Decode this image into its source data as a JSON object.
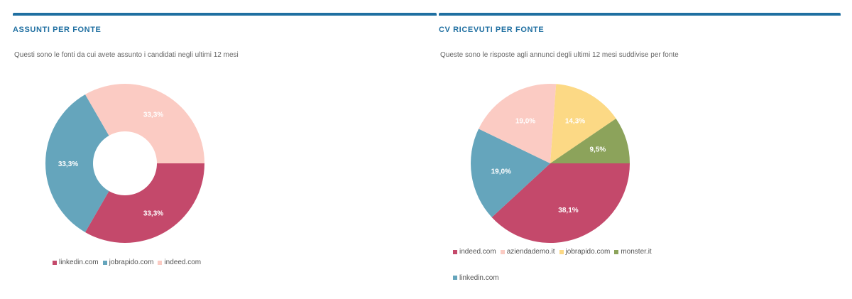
{
  "colors": {
    "accent": "#1f6fa1",
    "indeed": "#fbcbc3",
    "linkedin": "#c4496b",
    "jobrapido": "#65a5bc",
    "aziendademo": "#fbcbc3",
    "jobrapido_yellow": "#fcd985",
    "monster": "#8ca35b"
  },
  "left_panel": {
    "title": "ASSUNTI PER FONTE",
    "subtitle": "Questi sono le fonti da cui avete assunto i candidati negli ultimi 12 mesi",
    "legend": [
      {
        "label": "linkedin.com",
        "color": "#c4496b"
      },
      {
        "label": "jobrapido.com",
        "color": "#65a5bc"
      },
      {
        "label": "indeed.com",
        "color": "#fbcbc3"
      }
    ]
  },
  "right_panel": {
    "title": "CV RICEVUTI PER FONTE",
    "subtitle": "Queste sono le risposte agli annunci degli ultimi 12 mesi suddivise per fonte",
    "legend": [
      {
        "label": "indeed.com",
        "color": "#c4496b"
      },
      {
        "label": "aziendademo.it",
        "color": "#fbcbc3"
      },
      {
        "label": "jobrapido.com",
        "color": "#fcd985"
      },
      {
        "label": "monster.it",
        "color": "#8ca35b"
      },
      {
        "label": "linkedin.com",
        "color": "#65a5bc"
      }
    ]
  },
  "chart_data": [
    {
      "type": "pie",
      "variant": "doughnut",
      "title": "ASSUNTI PER FONTE",
      "slices": [
        {
          "name": "linkedin.com",
          "value": 33.3,
          "label": "33,3%",
          "color": "#c4496b"
        },
        {
          "name": "jobrapido.com",
          "value": 33.3,
          "label": "33,3%",
          "color": "#65a5bc"
        },
        {
          "name": "indeed.com",
          "value": 33.3,
          "label": "33,3%",
          "color": "#fbcbc3"
        }
      ],
      "legend_position": "bottom"
    },
    {
      "type": "pie",
      "title": "CV RICEVUTI PER FONTE",
      "slices": [
        {
          "name": "indeed.com",
          "value": 38.1,
          "label": "38,1%",
          "color": "#c4496b"
        },
        {
          "name": "linkedin.com",
          "value": 19.0,
          "label": "19,0%",
          "color": "#65a5bc"
        },
        {
          "name": "aziendademo.it",
          "value": 19.0,
          "label": "19,0%",
          "color": "#fbcbc3"
        },
        {
          "name": "jobrapido.com",
          "value": 14.3,
          "label": "14,3%",
          "color": "#fcd985"
        },
        {
          "name": "monster.it",
          "value": 9.5,
          "label": "9,5%",
          "color": "#8ca35b"
        }
      ],
      "legend_position": "bottom"
    }
  ]
}
